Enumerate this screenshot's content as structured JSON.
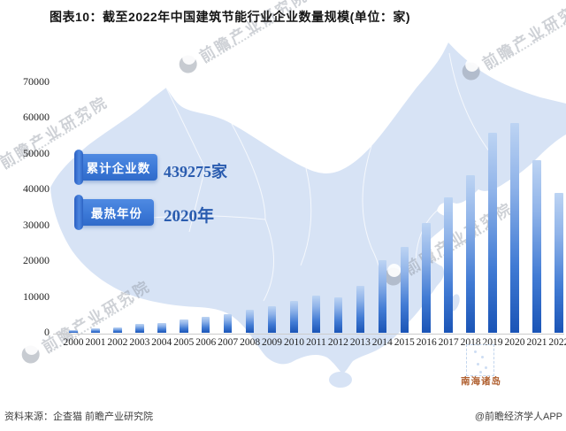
{
  "title": "图表10：截至2022年中国建筑节能行业企业数量规模(单位：家)",
  "info_badges": [
    {
      "label": "累计企业数",
      "value": "439275家"
    },
    {
      "label": "最热年份",
      "value": "2020年"
    }
  ],
  "map": {
    "inset_label": "南海诸岛"
  },
  "watermark_text": "前瞻产业研究院",
  "footer": {
    "source": "资料来源：企查猫 前瞻产业研究院",
    "credit": "@前瞻经济学人APP"
  },
  "colors": {
    "ribbon_blue": "#3a77d6",
    "badge_value_text": "#2a5caf",
    "bar_top": "#bdd4f3",
    "bar_bottom": "#1a54b6",
    "map_fill": "#d7e3f5",
    "inset_label": "#b06030"
  },
  "chart_data": {
    "type": "bar",
    "title": "图表10：截至2022年中国建筑节能行业企业数量规模(单位：家)",
    "unit": "家",
    "categories": [
      "2000",
      "2001",
      "2002",
      "2003",
      "2004",
      "2005",
      "2006",
      "2007",
      "2008",
      "2009",
      "2010",
      "2011",
      "2012",
      "2013",
      "2014",
      "2015",
      "2016",
      "2017",
      "2018",
      "2019",
      "2020",
      "2021",
      "2022"
    ],
    "values": [
      700,
      1200,
      1500,
      2500,
      2800,
      3600,
      4400,
      5300,
      6300,
      7400,
      9000,
      10300,
      10000,
      13200,
      20300,
      24000,
      30700,
      37800,
      44000,
      55800,
      58600,
      48100,
      38900
    ],
    "xlabel": "",
    "ylabel": "",
    "ylim": [
      0,
      70000
    ],
    "yticks": [
      0,
      10000,
      20000,
      30000,
      40000,
      50000,
      60000,
      70000
    ],
    "grid": false,
    "legend": null,
    "annotations": [
      {
        "label": "累计企业数",
        "value": "439275家"
      },
      {
        "label": "最热年份",
        "value": "2020年"
      }
    ]
  }
}
